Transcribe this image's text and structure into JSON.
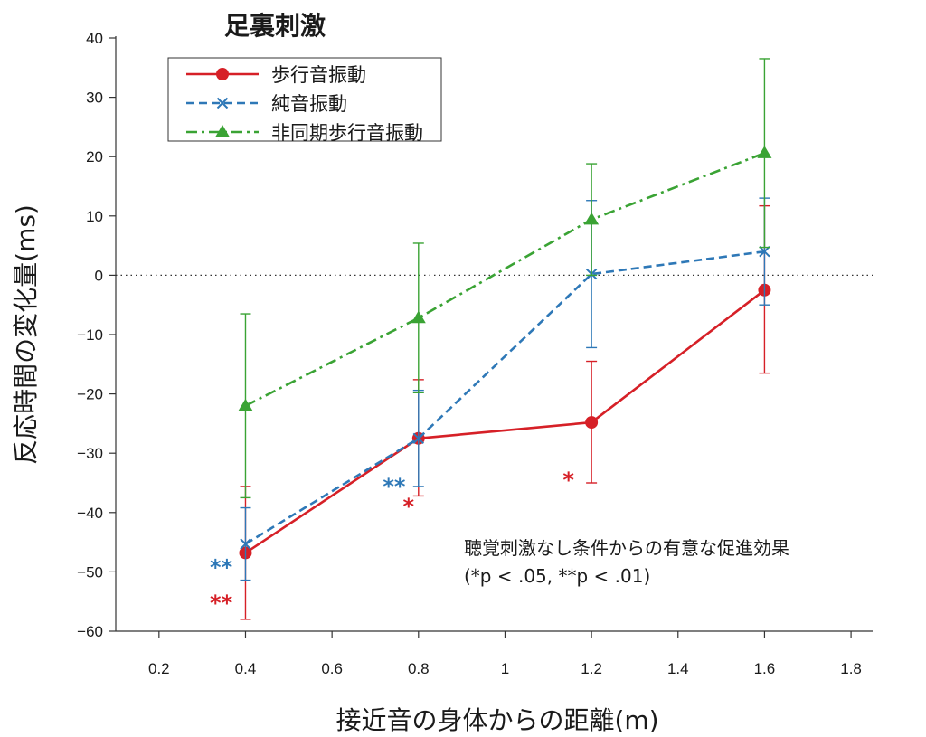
{
  "chart_data": {
    "type": "line",
    "title": "足裏刺激",
    "xlabel": "接近音の身体からの距離(m)",
    "ylabel": "反応時間の変化量(ms)",
    "xlim": [
      0.1,
      1.85
    ],
    "ylim": [
      -60,
      40
    ],
    "xticks": [
      0.2,
      0.4,
      0.6,
      0.8,
      1.0,
      1.2,
      1.4,
      1.6,
      1.8
    ],
    "xtick_labels": [
      "0.2",
      "0.4",
      "0.6",
      "0.8",
      "1",
      "1.2",
      "1.4",
      "1.6",
      "1.8"
    ],
    "yticks": [
      40,
      30,
      20,
      10,
      0,
      -10,
      -20,
      -30,
      -40,
      -50,
      -60
    ],
    "ytick_labels": [
      "40",
      "30",
      "20",
      "10",
      "0",
      "−10",
      "−20",
      "−30",
      "−40",
      "−50",
      "−60"
    ],
    "reference_line": {
      "y": 0,
      "style": "dotted"
    },
    "legend_position": "top-left",
    "series": [
      {
        "name": "歩行音振動",
        "color": "#d62027",
        "dash": "solid",
        "marker": "circle",
        "x": [
          0.4,
          0.8,
          1.2,
          1.6
        ],
        "y": [
          -46.8,
          -27.5,
          -24.8,
          -2.5
        ],
        "err_low": [
          -58,
          -37.2,
          -35,
          -16.5
        ],
        "err_high": [
          -35.6,
          -17.6,
          -14.5,
          11.7
        ]
      },
      {
        "name": "純音振動",
        "color": "#2e78b7",
        "dash": "dashed",
        "marker": "x",
        "x": [
          0.4,
          0.8,
          1.2,
          1.6
        ],
        "y": [
          -45.3,
          -27.5,
          0.2,
          4.0
        ],
        "err_low": [
          -51.4,
          -35.6,
          -12.2,
          -5.0
        ],
        "err_high": [
          -39.2,
          -19.4,
          12.6,
          13.0
        ]
      },
      {
        "name": "非同期歩行音振動",
        "color": "#3aa334",
        "dash": "dashdot",
        "marker": "triangle",
        "x": [
          0.4,
          0.8,
          1.2,
          1.6
        ],
        "y": [
          -22.0,
          -7.2,
          9.4,
          20.6
        ],
        "err_low": [
          -37.5,
          -19.8,
          0.0,
          4.7
        ],
        "err_high": [
          -6.5,
          5.4,
          18.8,
          36.5
        ]
      }
    ],
    "annotations": [
      {
        "text": "**",
        "color": "#2e78b7",
        "x": 0.37,
        "y": -50.5
      },
      {
        "text": "**",
        "color": "#d62027",
        "x": 0.37,
        "y": -56.5
      },
      {
        "text": "**",
        "color": "#2e78b7",
        "x": 0.77,
        "y": -36.8
      },
      {
        "text": "*",
        "color": "#d62027",
        "x": 0.79,
        "y": -40.2
      },
      {
        "text": "*",
        "color": "#d62027",
        "x": 1.16,
        "y": -35.8
      }
    ],
    "note_lines": [
      "聴覚刺激なし条件からの有意な促進効果",
      "(*p < .05, **p < .01)"
    ]
  }
}
